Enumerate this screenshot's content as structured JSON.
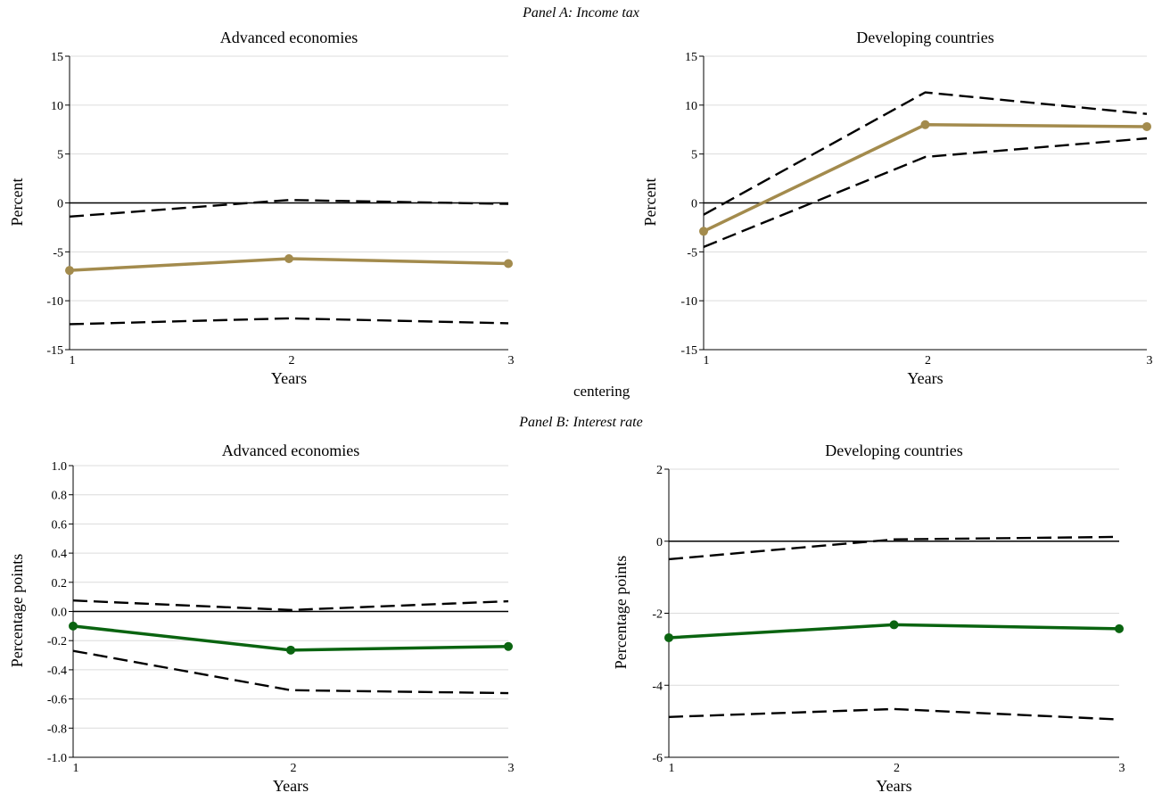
{
  "panels": {
    "a": "Panel A: Income tax",
    "b": "Panel B: Interest rate"
  },
  "stray_text": "centering",
  "chart_data": [
    {
      "type": "line",
      "title": "Advanced economies",
      "xlabel": "Years",
      "ylabel": "Percent",
      "x": [
        1,
        2,
        3
      ],
      "ylim": [
        -15,
        15
      ],
      "yticks": [
        -15,
        -10,
        -5,
        0,
        5,
        10,
        15
      ],
      "ytick_labels": [
        "-15",
        "-10",
        "-5",
        "0",
        "5",
        "10",
        "15"
      ],
      "xtick_labels": [
        "1",
        "2",
        "3"
      ],
      "grid": true,
      "color": "#a38b4d",
      "series": [
        {
          "values": [
            -6.9,
            -5.7,
            -6.2
          ]
        },
        {
          "values": [
            -1.4,
            0.3,
            -0.1
          ],
          "style": "dashed"
        },
        {
          "values": [
            -12.4,
            -11.8,
            -12.3
          ],
          "style": "dashed"
        }
      ]
    },
    {
      "type": "line",
      "title": "Developing countries",
      "xlabel": "Years",
      "ylabel": "Percent",
      "x": [
        1,
        2,
        3
      ],
      "ylim": [
        -15,
        15
      ],
      "yticks": [
        -15,
        -10,
        -5,
        0,
        5,
        10,
        15
      ],
      "ytick_labels": [
        "-15",
        "-10",
        "-5",
        "0",
        "5",
        "10",
        "15"
      ],
      "xtick_labels": [
        "1",
        "2",
        "3"
      ],
      "grid": true,
      "color": "#a38b4d",
      "series": [
        {
          "values": [
            -2.9,
            8.0,
            7.8
          ]
        },
        {
          "values": [
            -1.2,
            11.3,
            9.1
          ],
          "style": "dashed"
        },
        {
          "values": [
            -4.5,
            4.7,
            6.6
          ],
          "style": "dashed"
        }
      ]
    },
    {
      "type": "line",
      "title": "Advanced economies",
      "xlabel": "Years",
      "ylabel": "Percentage points",
      "x": [
        1,
        2,
        3
      ],
      "ylim": [
        -1.0,
        1.0
      ],
      "yticks": [
        -1.0,
        -0.8,
        -0.6,
        -0.4,
        -0.2,
        0.0,
        0.2,
        0.4,
        0.6,
        0.8,
        1.0
      ],
      "ytick_labels": [
        "-1.0",
        "-0.8",
        "-0.6",
        "-0.4",
        "-0.2",
        "0.0",
        "0.2",
        "0.4",
        "0.6",
        "0.8",
        "1.0"
      ],
      "xtick_labels": [
        "1",
        "2",
        "3"
      ],
      "grid": true,
      "color": "#0a6410",
      "series": [
        {
          "values": [
            -0.1,
            -0.265,
            -0.24
          ]
        },
        {
          "values": [
            0.075,
            0.01,
            0.07
          ],
          "style": "dashed"
        },
        {
          "values": [
            -0.27,
            -0.54,
            -0.56
          ],
          "style": "dashed"
        }
      ]
    },
    {
      "type": "line",
      "title": "Developing countries",
      "xlabel": "Years",
      "ylabel": "Percentage points",
      "x": [
        1,
        2,
        3
      ],
      "ylim": [
        -6,
        2
      ],
      "yticks": [
        -6,
        -4,
        -2,
        0,
        2
      ],
      "ytick_labels": [
        "-6",
        "-4",
        "-2",
        "0",
        "2"
      ],
      "xtick_labels": [
        "1",
        "2",
        "3"
      ],
      "grid": true,
      "color": "#0a6410",
      "series": [
        {
          "values": [
            -2.68,
            -2.32,
            -2.43
          ]
        },
        {
          "values": [
            -0.5,
            0.05,
            0.12
          ],
          "style": "dashed"
        },
        {
          "values": [
            -4.88,
            -4.66,
            -4.95
          ],
          "style": "dashed"
        }
      ]
    }
  ]
}
